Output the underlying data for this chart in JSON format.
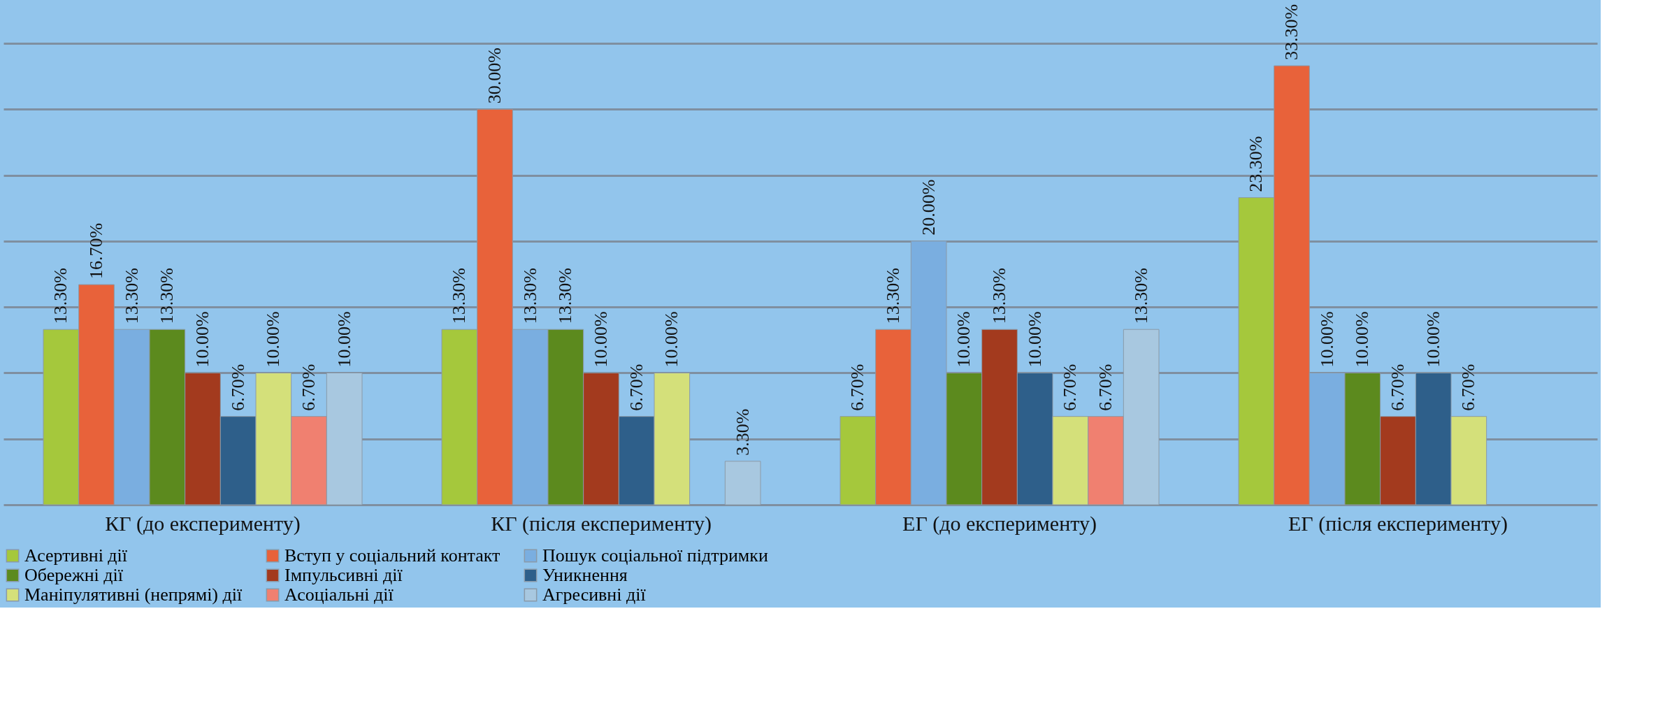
{
  "chart_data": {
    "type": "bar",
    "categories": [
      "КГ (до експерименту)",
      "КГ (після експерименту)",
      "ЕГ (до експерименту)",
      "ЕГ (після експерименту)"
    ],
    "series": [
      {
        "name": "Асертивні дії",
        "color": "#a5c83c",
        "values": [
          13.3,
          13.3,
          6.7,
          23.3
        ],
        "value_labels": [
          "13.30%",
          "13.30%",
          "6.70%",
          "23.30%"
        ]
      },
      {
        "name": "Вступ у соціальний контакт",
        "color": "#e8623a",
        "values": [
          16.7,
          30.0,
          13.3,
          33.3
        ],
        "value_labels": [
          "16.70%",
          "30.00%",
          "13.30%",
          "33.30%"
        ]
      },
      {
        "name": "Пошук соціальної підтримки",
        "color": "#7aaee0",
        "values": [
          13.3,
          13.3,
          20.0,
          10.0
        ],
        "value_labels": [
          "13.30%",
          "13.30%",
          "20.00%",
          "10.00%"
        ]
      },
      {
        "name": "Обережні дії",
        "color": "#5c8a1e",
        "values": [
          13.3,
          13.3,
          10.0,
          10.0
        ],
        "value_labels": [
          "13.30%",
          "13.30%",
          "10.00%",
          "10.00%"
        ]
      },
      {
        "name": "Імпульсивні дії",
        "color": "#a33a1e",
        "values": [
          10.0,
          10.0,
          13.3,
          6.7
        ],
        "value_labels": [
          "10.00%",
          "10.00%",
          "13.30%",
          "6.70%"
        ]
      },
      {
        "name": "Уникнення",
        "color": "#2e5f8a",
        "values": [
          6.7,
          6.7,
          10.0,
          10.0
        ],
        "value_labels": [
          "6.70%",
          "6.70%",
          "10.00%",
          "10.00%"
        ]
      },
      {
        "name": "Маніпулятивні (непрямі) дії",
        "color": "#d4e07a",
        "values": [
          10.0,
          10.0,
          6.7,
          6.7
        ],
        "value_labels": [
          "10.00%",
          "10.00%",
          "6.70%",
          "6.70%"
        ]
      },
      {
        "name": "Асоціальні дії",
        "color": "#f08070",
        "values": [
          6.7,
          null,
          6.7,
          null
        ],
        "value_labels": [
          "6.70%",
          null,
          "6.70%",
          null
        ]
      },
      {
        "name": "Агресивні дії",
        "color": "#a8c8e0",
        "values": [
          10.0,
          3.3,
          13.3,
          null
        ],
        "value_labels": [
          "10.00%",
          "3.30%",
          "13.30%",
          null
        ]
      }
    ],
    "ylim": [
      0,
      35
    ],
    "yticks": [
      {
        "value": 0,
        "label": null
      },
      {
        "value": 5,
        "label": null
      },
      {
        "value": 10,
        "label": null
      },
      {
        "value": 15,
        "label": null
      },
      {
        "value": 20,
        "label": null
      },
      {
        "value": 25,
        "label": null
      },
      {
        "value": 30,
        "label": null
      },
      {
        "value": 35,
        "label": null
      }
    ],
    "tick_labels": "x",
    "grid": "y",
    "legend": "bottom"
  }
}
